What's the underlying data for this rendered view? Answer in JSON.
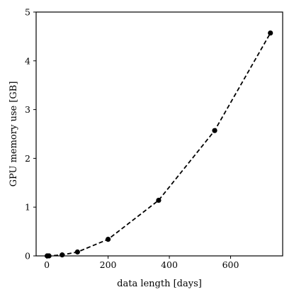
{
  "chart_data": {
    "type": "line",
    "title": "",
    "xlabel": "data length [days]",
    "ylabel": "GPU memory use [GB]",
    "xlim": [
      -35,
      770
    ],
    "ylim": [
      0,
      5
    ],
    "xticks": [
      0,
      200,
      400,
      600
    ],
    "yticks": [
      0,
      1,
      2,
      3,
      4,
      5
    ],
    "grid": false,
    "legend": "none",
    "series": [
      {
        "line_style": "dashed",
        "marker": "circle",
        "color": "#000000",
        "x": [
          1,
          7,
          50,
          100,
          200,
          365,
          548,
          730
        ],
        "y": [
          0.0,
          0.0,
          0.02,
          0.08,
          0.34,
          1.14,
          2.57,
          4.57
        ]
      }
    ]
  }
}
